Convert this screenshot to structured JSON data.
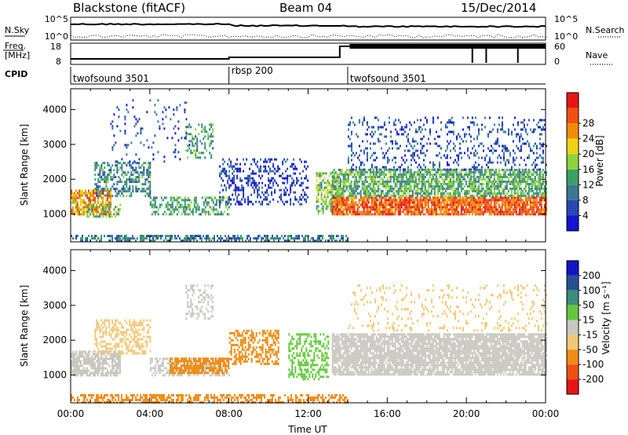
{
  "header": {
    "station": "Blackstone (fitACF)",
    "beam": "Beam 04",
    "date": "15/Dec/2014"
  },
  "sky_panel": {
    "left_label": "N.Sky",
    "right_label": "N.Search",
    "left_ticks": [
      "10^5",
      "10^0"
    ],
    "right_ticks": [
      "10^5",
      "10^0"
    ]
  },
  "freq_panel": {
    "left_label_1": "Freq.",
    "left_label_2": "[MHz]",
    "right_label": "Nave",
    "left_ticks": [
      "18",
      "8"
    ],
    "right_ticks": [
      "60",
      "0"
    ]
  },
  "cpid": {
    "label": "CPID",
    "segments": [
      {
        "name": "twofsound 3501",
        "start": 0,
        "end": 8
      },
      {
        "name": "rbsp 200",
        "start": 8,
        "end": 14
      },
      {
        "name": "twofsound 3501",
        "start": 14,
        "end": 24
      }
    ]
  },
  "chart_data": [
    {
      "type": "heatmap",
      "panel": "power",
      "ylabel": "Slant Range [km]",
      "xlim": [
        0,
        24
      ],
      "ylim": [
        200,
        4600
      ],
      "yticks": [
        1000,
        2000,
        3000,
        4000
      ],
      "colorbar": {
        "label": "Power [dB]",
        "ticks": [
          "4",
          "8",
          "12",
          "16",
          "20",
          "24",
          "28"
        ],
        "range": [
          0,
          32
        ],
        "colors": [
          "#1414d2",
          "#2846b4",
          "#3c7896",
          "#3ca064",
          "#8cd23c",
          "#f0d214",
          "#f08c0a",
          "#f05014",
          "#e61414"
        ]
      },
      "bands": [
        {
          "t0": 0.0,
          "t1": 2.0,
          "r0": 1000,
          "r1": 1700,
          "level": 22,
          "density": 0.75
        },
        {
          "t0": 1.2,
          "t1": 4.0,
          "r0": 1500,
          "r1": 2500,
          "level": 10,
          "density": 0.45
        },
        {
          "t0": 0.8,
          "t1": 2.5,
          "r0": 900,
          "r1": 1300,
          "level": 14,
          "density": 0.45
        },
        {
          "t0": 4.0,
          "t1": 8.0,
          "r0": 1000,
          "r1": 1500,
          "level": 12,
          "density": 0.5
        },
        {
          "t0": 5.8,
          "t1": 7.2,
          "r0": 2600,
          "r1": 3600,
          "level": 11,
          "density": 0.35
        },
        {
          "t0": 0.0,
          "t1": 14.0,
          "r0": 200,
          "r1": 400,
          "level": 9,
          "density": 0.55
        },
        {
          "t0": 7.5,
          "t1": 12.0,
          "r0": 1300,
          "r1": 2600,
          "level": 4,
          "density": 0.3
        },
        {
          "t0": 12.4,
          "t1": 13.6,
          "r0": 1000,
          "r1": 2200,
          "level": 15,
          "density": 0.55
        },
        {
          "t0": 13.2,
          "t1": 24.0,
          "r0": 1000,
          "r1": 1500,
          "level": 26,
          "density": 0.85
        },
        {
          "t0": 13.2,
          "t1": 24.0,
          "r0": 1500,
          "r1": 2300,
          "level": 13,
          "density": 0.7
        },
        {
          "t0": 14.0,
          "t1": 24.0,
          "r0": 2300,
          "r1": 3800,
          "level": 6,
          "density": 0.2
        },
        {
          "t0": 2.0,
          "t1": 6.0,
          "r0": 2500,
          "r1": 4300,
          "level": 5,
          "density": 0.08
        }
      ]
    },
    {
      "type": "heatmap",
      "panel": "velocity",
      "ylabel": "Slant Range [km]",
      "xlabel": "Time UT",
      "xlim": [
        0,
        24
      ],
      "ylim": [
        200,
        4600
      ],
      "yticks": [
        1000,
        2000,
        3000,
        4000
      ],
      "xticks": [
        "00:00",
        "04:00",
        "08:00",
        "12:00",
        "16:00",
        "20:00",
        "00:00"
      ],
      "colorbar": {
        "label": "Velocity [m s⁻¹]",
        "ticks": [
          "200",
          "100",
          "50",
          "15",
          "-15",
          "-50",
          "-100",
          "-200"
        ],
        "colors": [
          "#1414c8",
          "#285096",
          "#3c8c78",
          "#64c83c",
          "#c8c8c0",
          "#f0c878",
          "#f08c14",
          "#f05014",
          "#e61414"
        ]
      },
      "bands": [
        {
          "t0": 0.0,
          "t1": 2.5,
          "r0": 1000,
          "r1": 1700,
          "category": "grey",
          "density": 0.75
        },
        {
          "t0": 1.2,
          "t1": 4.0,
          "r0": 1600,
          "r1": 2600,
          "category": "light-orange",
          "density": 0.45
        },
        {
          "t0": 4.0,
          "t1": 8.0,
          "r0": 1000,
          "r1": 1500,
          "category": "grey",
          "density": 0.45
        },
        {
          "t0": 5.0,
          "t1": 8.0,
          "r0": 1050,
          "r1": 1500,
          "category": "orange",
          "density": 0.75
        },
        {
          "t0": 8.0,
          "t1": 10.5,
          "r0": 1300,
          "r1": 2300,
          "category": "orange",
          "density": 0.4
        },
        {
          "t0": 0.0,
          "t1": 14.0,
          "r0": 200,
          "r1": 450,
          "category": "orange",
          "density": 0.55
        },
        {
          "t0": 11.0,
          "t1": 13.0,
          "r0": 900,
          "r1": 2200,
          "category": "green",
          "density": 0.45
        },
        {
          "t0": 13.2,
          "t1": 24.0,
          "r0": 1000,
          "r1": 2200,
          "category": "grey",
          "density": 0.85
        },
        {
          "t0": 5.8,
          "t1": 7.2,
          "r0": 2600,
          "r1": 3600,
          "category": "grey",
          "density": 0.3
        },
        {
          "t0": 14.0,
          "t1": 24.0,
          "r0": 2300,
          "r1": 3600,
          "category": "light-orange",
          "density": 0.12
        }
      ]
    }
  ],
  "colors": {
    "grey": "#c8c8c0",
    "light-orange": "#f0c878",
    "orange": "#f08c14",
    "green": "#64c83c"
  }
}
